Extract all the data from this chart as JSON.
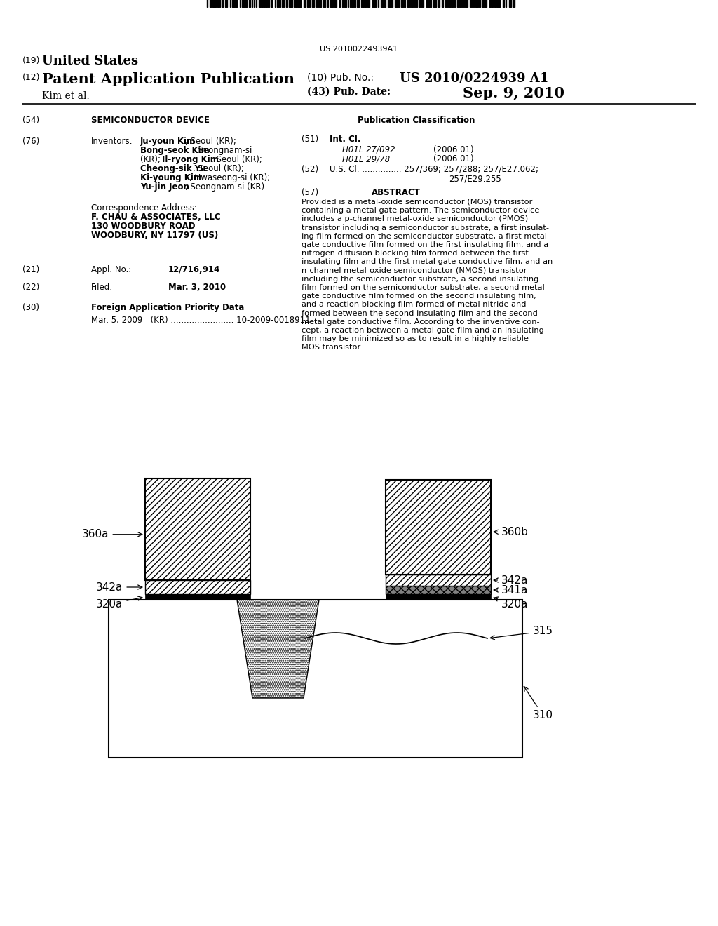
{
  "barcode_text": "US 20100224939A1",
  "header_19": "(19)",
  "header_19_text": "United States",
  "header_12": "(12)",
  "header_12_text": "Patent Application Publication",
  "header_author": "Kim et al.",
  "header_10": "(10) Pub. No.:",
  "header_pub_no": "US 2010/0224939 A1",
  "header_43": "(43) Pub. Date:",
  "header_pub_date": "Sep. 9, 2010",
  "pub_class_header": "Publication Classification",
  "int_cl_1": "H01L 27/092",
  "int_cl_1_date": "(2006.01)",
  "int_cl_2": "H01L 29/78",
  "int_cl_2_date": "(2006.01)",
  "abstract_text": "Provided is a metal-oxide semiconductor (MOS) transistor containing a metal gate pattern. The semiconductor device includes a p-channel metal-oxide semiconductor (PMOS) transistor including a semiconductor substrate, a first insulat- ing film formed on the semiconductor substrate, a first metal gate conductive film formed on the first insulating film, and a nitrogen diffusion blocking film formed between the first insulating film and the first metal gate conductive film, and an n-channel metal-oxide semiconductor (NMOS) transistor including the semiconductor substrate, a second insulating film formed on the semiconductor substrate, a second metal gate conductive film formed on the second insulating film, and a reaction blocking film formed of metal nitride and formed between the second insulating film and the second metal gate conductive film. According to the inventive con- cept, a reaction between a metal gate film and an insulating film may be minimized so as to result in a highly reliable MOS transistor.",
  "appl_no": "12/716,914",
  "filed": "Mar. 3, 2010",
  "label_360a": "360a",
  "label_360b": "360b",
  "label_342a_l": "342a",
  "label_342a_r": "342a",
  "label_341a": "341a",
  "label_320a_l": "320a",
  "label_320a_r": "320a",
  "label_315": "315",
  "label_310": "310"
}
